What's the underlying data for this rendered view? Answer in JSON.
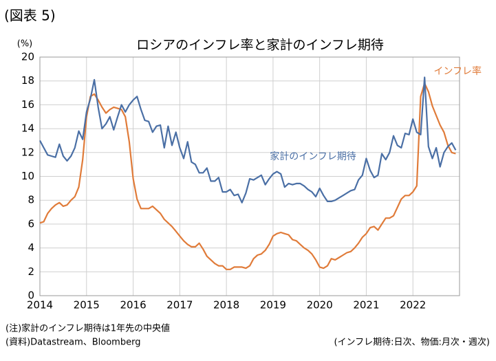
{
  "header": "(図表 5)",
  "chart_data": {
    "type": "line",
    "title": "ロシアのインフレ率と家計のインフレ期待",
    "y_label": "(%)",
    "x": [
      2014,
      2014.083,
      2014.167,
      2014.25,
      2014.333,
      2014.417,
      2014.5,
      2014.583,
      2014.667,
      2014.75,
      2014.833,
      2014.917,
      2015,
      2015.083,
      2015.167,
      2015.25,
      2015.333,
      2015.417,
      2015.5,
      2015.583,
      2015.667,
      2015.75,
      2015.833,
      2015.917,
      2016,
      2016.083,
      2016.167,
      2016.25,
      2016.333,
      2016.417,
      2016.5,
      2016.583,
      2016.667,
      2016.75,
      2016.833,
      2016.917,
      2017,
      2017.083,
      2017.167,
      2017.25,
      2017.333,
      2017.417,
      2017.5,
      2017.583,
      2017.667,
      2017.75,
      2017.833,
      2017.917,
      2018,
      2018.083,
      2018.167,
      2018.25,
      2018.333,
      2018.417,
      2018.5,
      2018.583,
      2018.667,
      2018.75,
      2018.833,
      2018.917,
      2019,
      2019.083,
      2019.167,
      2019.25,
      2019.333,
      2019.417,
      2019.5,
      2019.583,
      2019.667,
      2019.75,
      2019.833,
      2019.917,
      2020,
      2020.083,
      2020.167,
      2020.25,
      2020.333,
      2020.417,
      2020.5,
      2020.583,
      2020.667,
      2020.75,
      2020.833,
      2020.917,
      2021,
      2021.083,
      2021.167,
      2021.25,
      2021.333,
      2021.417,
      2021.5,
      2021.583,
      2021.667,
      2021.75,
      2021.833,
      2021.917,
      2022,
      2022.083,
      2022.167,
      2022.25,
      2022.333,
      2022.417,
      2022.5,
      2022.583,
      2022.667,
      2022.75,
      2022.833,
      2022.917
    ],
    "series": [
      {
        "name": "インフレ率",
        "color": "#e07b39",
        "values": [
          6.1,
          6.2,
          6.9,
          7.3,
          7.6,
          7.8,
          7.5,
          7.6,
          8.0,
          8.3,
          9.1,
          11.4,
          15.0,
          16.7,
          16.9,
          16.4,
          15.8,
          15.3,
          15.6,
          15.8,
          15.7,
          15.6,
          15.0,
          12.9,
          9.8,
          8.1,
          7.3,
          7.3,
          7.3,
          7.5,
          7.2,
          6.9,
          6.4,
          6.1,
          5.8,
          5.4,
          5.0,
          4.6,
          4.3,
          4.1,
          4.1,
          4.4,
          3.9,
          3.3,
          3.0,
          2.7,
          2.5,
          2.5,
          2.2,
          2.2,
          2.4,
          2.4,
          2.4,
          2.3,
          2.5,
          3.1,
          3.4,
          3.5,
          3.8,
          4.3,
          5.0,
          5.2,
          5.3,
          5.2,
          5.1,
          4.7,
          4.6,
          4.3,
          4.0,
          3.8,
          3.5,
          3.0,
          2.4,
          2.3,
          2.5,
          3.1,
          3.0,
          3.2,
          3.4,
          3.6,
          3.7,
          4.0,
          4.4,
          4.9,
          5.2,
          5.7,
          5.8,
          5.5,
          6.0,
          6.5,
          6.5,
          6.7,
          7.4,
          8.1,
          8.4,
          8.4,
          8.7,
          9.2,
          16.7,
          17.8,
          17.1,
          15.9,
          15.1,
          14.3,
          13.7,
          12.6,
          12.0,
          11.9
        ]
      },
      {
        "name": "家計のインフレ期待",
        "color": "#4a6fa5",
        "values": [
          13.0,
          12.4,
          11.8,
          11.7,
          11.6,
          12.7,
          11.7,
          11.3,
          11.7,
          12.4,
          13.8,
          13.1,
          15.4,
          16.5,
          18.1,
          15.8,
          14.0,
          14.4,
          15.0,
          13.9,
          15.0,
          16.0,
          15.4,
          16.0,
          16.4,
          16.7,
          15.6,
          14.7,
          14.6,
          13.7,
          14.2,
          14.3,
          12.4,
          14.2,
          12.6,
          13.7,
          12.4,
          11.5,
          12.9,
          11.2,
          11.0,
          10.3,
          10.3,
          10.7,
          9.6,
          9.6,
          9.9,
          8.7,
          8.7,
          8.9,
          8.4,
          8.5,
          7.8,
          8.6,
          9.8,
          9.7,
          9.9,
          10.1,
          9.3,
          9.8,
          10.2,
          10.4,
          10.2,
          9.1,
          9.4,
          9.3,
          9.4,
          9.4,
          9.2,
          8.9,
          8.7,
          8.3,
          9.0,
          8.4,
          7.9,
          7.9,
          8.0,
          8.2,
          8.4,
          8.6,
          8.8,
          8.9,
          9.7,
          10.1,
          11.5,
          10.5,
          9.9,
          10.1,
          11.9,
          11.4,
          12.0,
          13.4,
          12.6,
          12.4,
          13.6,
          13.5,
          14.8,
          13.7,
          13.5,
          18.3,
          12.5,
          11.5,
          12.4,
          10.8,
          12.0,
          12.5,
          12.8,
          12.2
        ]
      }
    ],
    "xlim": [
      2014,
      2023
    ],
    "xticks": [
      2014,
      2015,
      2016,
      2017,
      2018,
      2019,
      2020,
      2021,
      2022
    ],
    "ylim": [
      0,
      20
    ],
    "yticks": [
      0,
      2,
      4,
      6,
      8,
      10,
      12,
      14,
      16,
      18,
      20
    ],
    "grid": true
  },
  "notes": [
    "(注)家計のインフレ期待は1年先の中央値",
    "(資料)Datastream、Bloomberg"
  ],
  "source_note": "(インフレ期待:日次、物価:月次・週次)"
}
